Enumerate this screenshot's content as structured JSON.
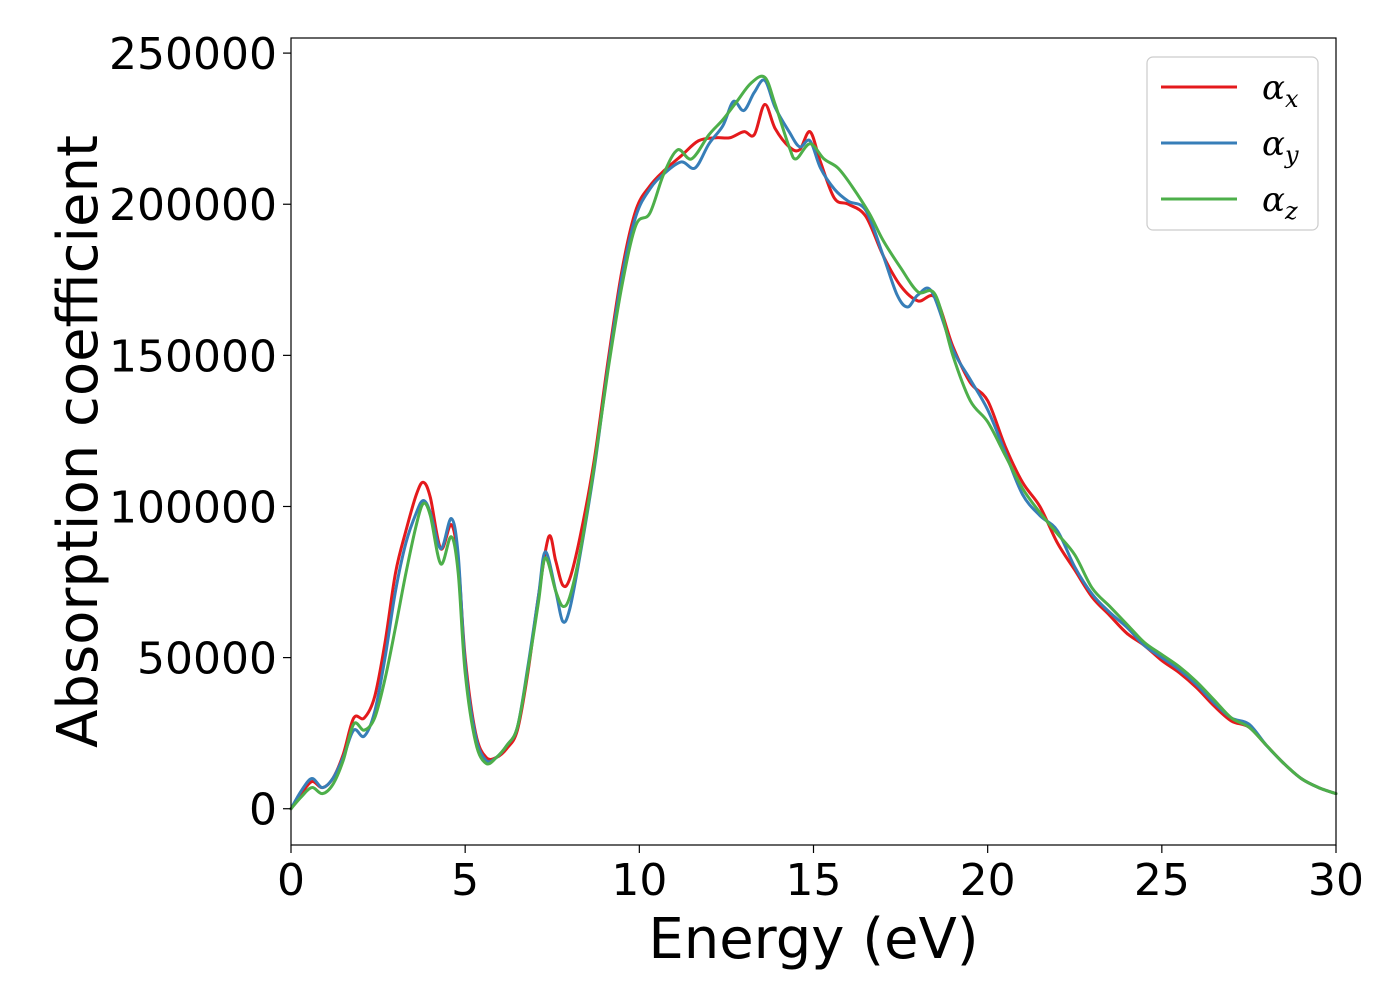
{
  "chart_data": {
    "type": "line",
    "title": "",
    "xlabel": "Energy (eV)",
    "ylabel": "Absorption coefficient",
    "xlim": [
      0,
      30
    ],
    "ylim": [
      -12000,
      255000
    ],
    "xticks": [
      0,
      5,
      10,
      15,
      20,
      25,
      30
    ],
    "xtick_labels": [
      "0",
      "5",
      "10",
      "15",
      "20",
      "25",
      "30"
    ],
    "yticks": [
      0,
      50000,
      100000,
      150000,
      200000,
      250000
    ],
    "ytick_labels": [
      "0",
      "50000",
      "100000",
      "150000",
      "200000",
      "250000"
    ],
    "grid": false,
    "legend_position": "top-right",
    "series": [
      {
        "name": "α_x",
        "legend_main": "α",
        "legend_sub": "x",
        "color": "#e41a1c",
        "points": [
          [
            0,
            0
          ],
          [
            0.3,
            5000
          ],
          [
            0.6,
            9000
          ],
          [
            0.9,
            7000
          ],
          [
            1.2,
            10000
          ],
          [
            1.5,
            18000
          ],
          [
            1.8,
            30000
          ],
          [
            2.1,
            30000
          ],
          [
            2.4,
            37000
          ],
          [
            2.7,
            55000
          ],
          [
            3.0,
            78000
          ],
          [
            3.3,
            92000
          ],
          [
            3.6,
            104000
          ],
          [
            3.8,
            108000
          ],
          [
            4.0,
            103000
          ],
          [
            4.3,
            86000
          ],
          [
            4.6,
            94000
          ],
          [
            4.8,
            82000
          ],
          [
            5.0,
            50000
          ],
          [
            5.3,
            25000
          ],
          [
            5.6,
            17000
          ],
          [
            5.9,
            17000
          ],
          [
            6.2,
            20000
          ],
          [
            6.5,
            26000
          ],
          [
            6.8,
            45000
          ],
          [
            7.1,
            70000
          ],
          [
            7.4,
            90000
          ],
          [
            7.6,
            82000
          ],
          [
            7.8,
            74000
          ],
          [
            8.0,
            76000
          ],
          [
            8.3,
            90000
          ],
          [
            8.7,
            115000
          ],
          [
            9.1,
            148000
          ],
          [
            9.5,
            178000
          ],
          [
            9.9,
            198000
          ],
          [
            10.3,
            206000
          ],
          [
            10.7,
            211000
          ],
          [
            11.2,
            216000
          ],
          [
            11.7,
            221000
          ],
          [
            12.2,
            222000
          ],
          [
            12.6,
            222000
          ],
          [
            13.0,
            224000
          ],
          [
            13.3,
            223000
          ],
          [
            13.6,
            233000
          ],
          [
            13.9,
            225000
          ],
          [
            14.3,
            219000
          ],
          [
            14.6,
            218000
          ],
          [
            14.9,
            224000
          ],
          [
            15.2,
            214000
          ],
          [
            15.6,
            202000
          ],
          [
            16.0,
            200000
          ],
          [
            16.5,
            196000
          ],
          [
            17.0,
            183000
          ],
          [
            17.5,
            173000
          ],
          [
            18.0,
            168000
          ],
          [
            18.5,
            169000
          ],
          [
            19.0,
            153000
          ],
          [
            19.5,
            141000
          ],
          [
            20.0,
            135000
          ],
          [
            20.5,
            120000
          ],
          [
            21.0,
            108000
          ],
          [
            21.5,
            100000
          ],
          [
            22.0,
            88000
          ],
          [
            22.5,
            79000
          ],
          [
            23.0,
            70000
          ],
          [
            23.5,
            64000
          ],
          [
            24.0,
            58000
          ],
          [
            24.5,
            54000
          ],
          [
            25.0,
            49000
          ],
          [
            25.5,
            45000
          ],
          [
            26.0,
            40000
          ],
          [
            26.5,
            34000
          ],
          [
            27.0,
            29000
          ],
          [
            27.5,
            27000
          ],
          [
            28.0,
            21000
          ],
          [
            28.5,
            15000
          ],
          [
            29.0,
            10000
          ],
          [
            29.5,
            7000
          ],
          [
            30.0,
            5000
          ]
        ]
      },
      {
        "name": "α_y",
        "legend_main": "α",
        "legend_sub": "y",
        "color": "#377eb8",
        "points": [
          [
            0,
            0
          ],
          [
            0.3,
            6000
          ],
          [
            0.6,
            10000
          ],
          [
            0.9,
            7000
          ],
          [
            1.2,
            10000
          ],
          [
            1.5,
            17000
          ],
          [
            1.8,
            26000
          ],
          [
            2.1,
            24000
          ],
          [
            2.4,
            32000
          ],
          [
            2.7,
            50000
          ],
          [
            3.0,
            72000
          ],
          [
            3.3,
            88000
          ],
          [
            3.6,
            98000
          ],
          [
            3.8,
            102000
          ],
          [
            4.0,
            98000
          ],
          [
            4.3,
            86000
          ],
          [
            4.6,
            96000
          ],
          [
            4.8,
            84000
          ],
          [
            5.0,
            48000
          ],
          [
            5.3,
            24000
          ],
          [
            5.6,
            16000
          ],
          [
            5.9,
            17000
          ],
          [
            6.2,
            21000
          ],
          [
            6.5,
            27000
          ],
          [
            6.8,
            47000
          ],
          [
            7.1,
            70000
          ],
          [
            7.3,
            85000
          ],
          [
            7.6,
            72000
          ],
          [
            7.8,
            62000
          ],
          [
            8.0,
            66000
          ],
          [
            8.3,
            84000
          ],
          [
            8.7,
            112000
          ],
          [
            9.1,
            146000
          ],
          [
            9.5,
            176000
          ],
          [
            9.9,
            196000
          ],
          [
            10.3,
            205000
          ],
          [
            10.7,
            210000
          ],
          [
            11.2,
            214000
          ],
          [
            11.6,
            212000
          ],
          [
            12.0,
            220000
          ],
          [
            12.4,
            226000
          ],
          [
            12.7,
            234000
          ],
          [
            13.0,
            231000
          ],
          [
            13.3,
            237000
          ],
          [
            13.6,
            241000
          ],
          [
            13.9,
            232000
          ],
          [
            14.3,
            224000
          ],
          [
            14.6,
            219000
          ],
          [
            14.9,
            221000
          ],
          [
            15.2,
            212000
          ],
          [
            15.6,
            205000
          ],
          [
            16.0,
            201000
          ],
          [
            16.5,
            198000
          ],
          [
            17.0,
            183000
          ],
          [
            17.4,
            170000
          ],
          [
            17.7,
            166000
          ],
          [
            18.0,
            170000
          ],
          [
            18.4,
            171000
          ],
          [
            19.0,
            152000
          ],
          [
            19.5,
            142000
          ],
          [
            20.0,
            132000
          ],
          [
            20.5,
            118000
          ],
          [
            21.0,
            104000
          ],
          [
            21.5,
            97000
          ],
          [
            22.0,
            92000
          ],
          [
            22.5,
            80000
          ],
          [
            23.0,
            71000
          ],
          [
            23.5,
            65000
          ],
          [
            24.0,
            60000
          ],
          [
            24.5,
            54000
          ],
          [
            25.0,
            50000
          ],
          [
            25.5,
            46000
          ],
          [
            26.0,
            41000
          ],
          [
            26.5,
            35000
          ],
          [
            27.0,
            30000
          ],
          [
            27.5,
            28000
          ],
          [
            28.0,
            21000
          ],
          [
            28.5,
            15000
          ],
          [
            29.0,
            10000
          ],
          [
            29.5,
            7000
          ],
          [
            30.0,
            5000
          ]
        ]
      },
      {
        "name": "α_z",
        "legend_main": "α",
        "legend_sub": "z",
        "color": "#4daf4a",
        "points": [
          [
            0,
            0
          ],
          [
            0.3,
            4000
          ],
          [
            0.6,
            7000
          ],
          [
            0.9,
            5000
          ],
          [
            1.2,
            8000
          ],
          [
            1.5,
            16000
          ],
          [
            1.8,
            28000
          ],
          [
            2.1,
            26000
          ],
          [
            2.4,
            30000
          ],
          [
            2.7,
            43000
          ],
          [
            3.0,
            60000
          ],
          [
            3.3,
            78000
          ],
          [
            3.6,
            94000
          ],
          [
            3.8,
            101000
          ],
          [
            4.0,
            97000
          ],
          [
            4.3,
            81000
          ],
          [
            4.6,
            90000
          ],
          [
            4.8,
            78000
          ],
          [
            5.0,
            45000
          ],
          [
            5.3,
            22000
          ],
          [
            5.6,
            15000
          ],
          [
            5.9,
            17000
          ],
          [
            6.2,
            21000
          ],
          [
            6.5,
            27000
          ],
          [
            6.8,
            46000
          ],
          [
            7.1,
            68000
          ],
          [
            7.3,
            83000
          ],
          [
            7.6,
            72000
          ],
          [
            7.8,
            67000
          ],
          [
            8.0,
            70000
          ],
          [
            8.3,
            85000
          ],
          [
            8.7,
            113000
          ],
          [
            9.1,
            145000
          ],
          [
            9.5,
            173000
          ],
          [
            9.9,
            193000
          ],
          [
            10.3,
            197000
          ],
          [
            10.7,
            210000
          ],
          [
            11.1,
            218000
          ],
          [
            11.5,
            215000
          ],
          [
            12.0,
            223000
          ],
          [
            12.4,
            228000
          ],
          [
            12.8,
            234000
          ],
          [
            13.2,
            240000
          ],
          [
            13.6,
            242000
          ],
          [
            13.9,
            233000
          ],
          [
            14.3,
            219000
          ],
          [
            14.5,
            215000
          ],
          [
            14.9,
            220000
          ],
          [
            15.3,
            215000
          ],
          [
            15.7,
            212000
          ],
          [
            16.1,
            206000
          ],
          [
            16.6,
            197000
          ],
          [
            17.0,
            188000
          ],
          [
            17.5,
            179000
          ],
          [
            18.0,
            171000
          ],
          [
            18.5,
            170000
          ],
          [
            19.0,
            150000
          ],
          [
            19.5,
            135000
          ],
          [
            20.0,
            128000
          ],
          [
            20.5,
            117000
          ],
          [
            21.0,
            106000
          ],
          [
            21.5,
            98000
          ],
          [
            22.0,
            91000
          ],
          [
            22.5,
            84000
          ],
          [
            23.0,
            73000
          ],
          [
            23.5,
            67000
          ],
          [
            24.0,
            61000
          ],
          [
            24.5,
            55000
          ],
          [
            25.0,
            51000
          ],
          [
            25.5,
            47000
          ],
          [
            26.0,
            42000
          ],
          [
            26.5,
            36000
          ],
          [
            27.0,
            30000
          ],
          [
            27.5,
            27000
          ],
          [
            28.0,
            21000
          ],
          [
            28.5,
            15000
          ],
          [
            29.0,
            10000
          ],
          [
            29.5,
            7000
          ],
          [
            30.0,
            5000
          ]
        ]
      }
    ]
  }
}
